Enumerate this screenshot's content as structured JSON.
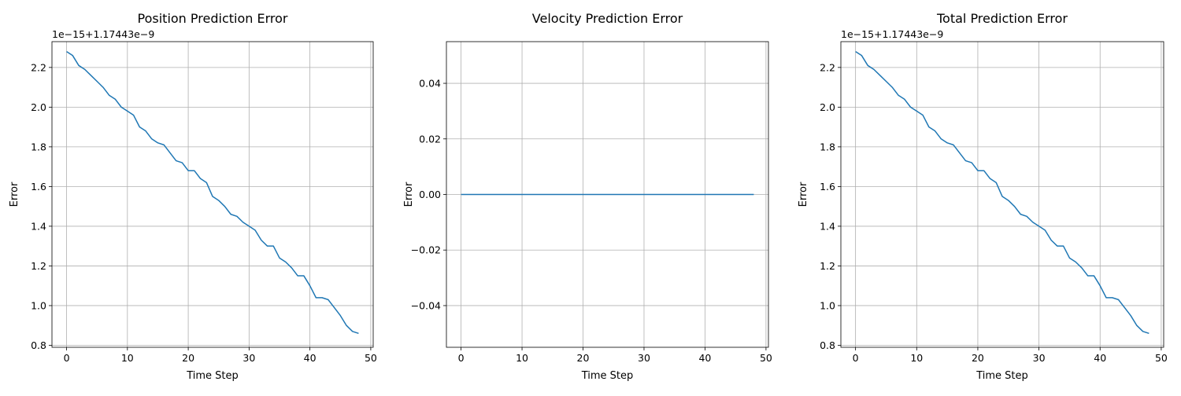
{
  "chart_data": [
    {
      "type": "line",
      "title": "Position Prediction Error",
      "xlabel": "Time Step",
      "ylabel": "Error",
      "offset_label": "1e−15+1.17443e−9",
      "xlim": [
        -2.4,
        50.4
      ],
      "ylim": [
        0.79,
        2.33
      ],
      "xticks": [
        0,
        10,
        20,
        30,
        40,
        50
      ],
      "xtick_labels": [
        "0",
        "10",
        "20",
        "30",
        "40",
        "50"
      ],
      "yticks": [
        0.8,
        1.0,
        1.2,
        1.4,
        1.6,
        1.8,
        2.0,
        2.2
      ],
      "ytick_labels": [
        "0.8",
        "1.0",
        "1.2",
        "1.4",
        "1.6",
        "1.8",
        "2.0",
        "2.2"
      ],
      "grid": true,
      "color": "#1f77b4",
      "x": [
        0,
        1,
        2,
        3,
        4,
        5,
        6,
        7,
        8,
        9,
        10,
        11,
        12,
        13,
        14,
        15,
        16,
        17,
        18,
        19,
        20,
        21,
        22,
        23,
        24,
        25,
        26,
        27,
        28,
        29,
        30,
        31,
        32,
        33,
        34,
        35,
        36,
        37,
        38,
        39,
        40,
        41,
        42,
        43,
        44,
        45,
        46,
        47,
        48
      ],
      "values": [
        2.28,
        2.26,
        2.21,
        2.19,
        2.16,
        2.13,
        2.1,
        2.06,
        2.04,
        2.0,
        1.98,
        1.96,
        1.9,
        1.88,
        1.84,
        1.82,
        1.81,
        1.77,
        1.73,
        1.72,
        1.68,
        1.68,
        1.64,
        1.62,
        1.55,
        1.53,
        1.5,
        1.46,
        1.45,
        1.42,
        1.4,
        1.38,
        1.33,
        1.3,
        1.3,
        1.24,
        1.22,
        1.19,
        1.15,
        1.15,
        1.1,
        1.04,
        1.04,
        1.03,
        0.99,
        0.95,
        0.9,
        0.87,
        0.86
      ]
    },
    {
      "type": "line",
      "title": "Velocity Prediction Error",
      "xlabel": "Time Step",
      "ylabel": "Error",
      "offset_label": "",
      "xlim": [
        -2.4,
        50.4
      ],
      "ylim": [
        -0.055,
        0.055
      ],
      "xticks": [
        0,
        10,
        20,
        30,
        40,
        50
      ],
      "xtick_labels": [
        "0",
        "10",
        "20",
        "30",
        "40",
        "50"
      ],
      "yticks": [
        -0.04,
        -0.02,
        0.0,
        0.02,
        0.04
      ],
      "ytick_labels": [
        "−0.04",
        "−0.02",
        "0.00",
        "0.02",
        "0.04"
      ],
      "grid": true,
      "color": "#1f77b4",
      "x": [
        0,
        1,
        2,
        3,
        4,
        5,
        6,
        7,
        8,
        9,
        10,
        11,
        12,
        13,
        14,
        15,
        16,
        17,
        18,
        19,
        20,
        21,
        22,
        23,
        24,
        25,
        26,
        27,
        28,
        29,
        30,
        31,
        32,
        33,
        34,
        35,
        36,
        37,
        38,
        39,
        40,
        41,
        42,
        43,
        44,
        45,
        46,
        47,
        48
      ],
      "values": [
        0,
        0,
        0,
        0,
        0,
        0,
        0,
        0,
        0,
        0,
        0,
        0,
        0,
        0,
        0,
        0,
        0,
        0,
        0,
        0,
        0,
        0,
        0,
        0,
        0,
        0,
        0,
        0,
        0,
        0,
        0,
        0,
        0,
        0,
        0,
        0,
        0,
        0,
        0,
        0,
        0,
        0,
        0,
        0,
        0,
        0,
        0,
        0,
        0
      ]
    },
    {
      "type": "line",
      "title": "Total Prediction Error",
      "xlabel": "Time Step",
      "ylabel": "Error",
      "offset_label": "1e−15+1.17443e−9",
      "xlim": [
        -2.4,
        50.4
      ],
      "ylim": [
        0.79,
        2.33
      ],
      "xticks": [
        0,
        10,
        20,
        30,
        40,
        50
      ],
      "xtick_labels": [
        "0",
        "10",
        "20",
        "30",
        "40",
        "50"
      ],
      "yticks": [
        0.8,
        1.0,
        1.2,
        1.4,
        1.6,
        1.8,
        2.0,
        2.2
      ],
      "ytick_labels": [
        "0.8",
        "1.0",
        "1.2",
        "1.4",
        "1.6",
        "1.8",
        "2.0",
        "2.2"
      ],
      "grid": true,
      "color": "#1f77b4",
      "x": [
        0,
        1,
        2,
        3,
        4,
        5,
        6,
        7,
        8,
        9,
        10,
        11,
        12,
        13,
        14,
        15,
        16,
        17,
        18,
        19,
        20,
        21,
        22,
        23,
        24,
        25,
        26,
        27,
        28,
        29,
        30,
        31,
        32,
        33,
        34,
        35,
        36,
        37,
        38,
        39,
        40,
        41,
        42,
        43,
        44,
        45,
        46,
        47,
        48
      ],
      "values": [
        2.28,
        2.26,
        2.21,
        2.19,
        2.16,
        2.13,
        2.1,
        2.06,
        2.04,
        2.0,
        1.98,
        1.96,
        1.9,
        1.88,
        1.84,
        1.82,
        1.81,
        1.77,
        1.73,
        1.72,
        1.68,
        1.68,
        1.64,
        1.62,
        1.55,
        1.53,
        1.5,
        1.46,
        1.45,
        1.42,
        1.4,
        1.38,
        1.33,
        1.3,
        1.3,
        1.24,
        1.22,
        1.19,
        1.15,
        1.15,
        1.1,
        1.04,
        1.04,
        1.03,
        0.99,
        0.95,
        0.9,
        0.87,
        0.86
      ]
    }
  ]
}
